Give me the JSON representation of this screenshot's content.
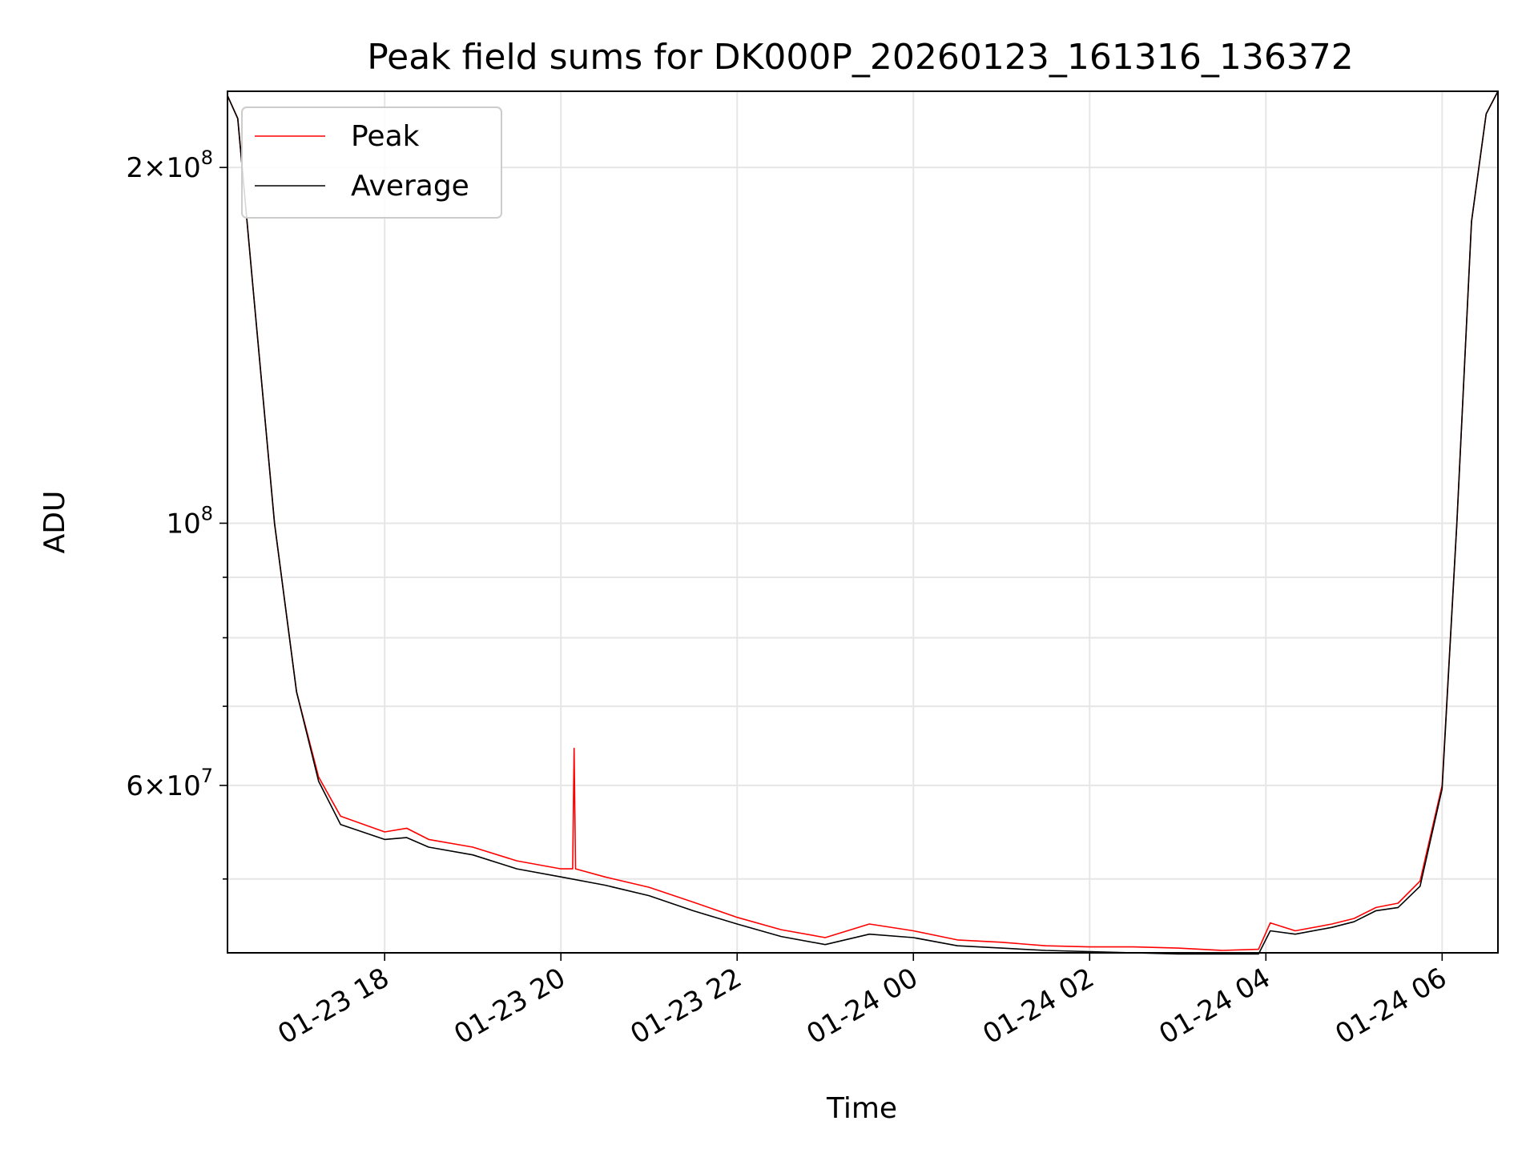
{
  "chart_data": {
    "type": "line",
    "title": "Peak field sums for DK000P_20260123_161316_136372",
    "xlabel": "Time",
    "ylabel": "ADU",
    "x_is_time": true,
    "xlim": [
      "2026-01-23 16:13",
      "2026-01-24 06:38"
    ],
    "ylim": [
      43300000,
      232000000
    ],
    "yscale": "log",
    "grid": true,
    "legend_position": "upper left",
    "x_ticks": [
      {
        "value": "2026-01-23 18:00",
        "label": "01-23 18"
      },
      {
        "value": "2026-01-23 20:00",
        "label": "01-23 20"
      },
      {
        "value": "2026-01-23 22:00",
        "label": "01-23 22"
      },
      {
        "value": "2026-01-24 00:00",
        "label": "01-24 00"
      },
      {
        "value": "2026-01-24 02:00",
        "label": "01-24 02"
      },
      {
        "value": "2026-01-24 04:00",
        "label": "01-24 04"
      },
      {
        "value": "2026-01-24 06:00",
        "label": "01-24 06"
      }
    ],
    "y_major_ticks": [
      {
        "value": 60000000,
        "mantissa": "6",
        "exponent": "7"
      },
      {
        "value": 100000000,
        "mantissa": "",
        "exponent": "8"
      },
      {
        "value": 200000000,
        "mantissa": "2",
        "exponent": "8"
      }
    ],
    "y_minor_ticks": [
      50000000,
      70000000,
      80000000,
      90000000,
      300000000
    ],
    "series": [
      {
        "name": "Peak",
        "color": "#ff0000",
        "x": [
          "2026-01-23 16:13",
          "2026-01-23 16:20",
          "2026-01-23 16:30",
          "2026-01-23 16:45",
          "2026-01-23 17:00",
          "2026-01-23 17:15",
          "2026-01-23 17:30",
          "2026-01-23 18:00",
          "2026-01-23 18:15",
          "2026-01-23 18:30",
          "2026-01-23 19:00",
          "2026-01-23 19:30",
          "2026-01-23 20:00",
          "2026-01-23 20:08",
          "2026-01-23 20:09",
          "2026-01-23 20:10",
          "2026-01-23 20:30",
          "2026-01-23 21:00",
          "2026-01-23 21:30",
          "2026-01-23 22:00",
          "2026-01-23 22:30",
          "2026-01-23 23:00",
          "2026-01-23 23:30",
          "2026-01-24 00:00",
          "2026-01-24 00:30",
          "2026-01-24 01:00",
          "2026-01-24 01:30",
          "2026-01-24 02:00",
          "2026-01-24 02:30",
          "2026-01-24 03:00",
          "2026-01-24 03:30",
          "2026-01-24 03:55",
          "2026-01-24 04:03",
          "2026-01-24 04:20",
          "2026-01-24 04:45",
          "2026-01-24 05:00",
          "2026-01-24 05:15",
          "2026-01-24 05:30",
          "2026-01-24 05:45",
          "2026-01-24 06:00",
          "2026-01-24 06:10",
          "2026-01-24 06:20",
          "2026-01-24 06:30",
          "2026-01-24 06:38"
        ],
        "y": [
          230000000,
          220000000,
          160000000,
          100000000,
          72000000,
          61000000,
          56500000,
          54800000,
          55200000,
          54000000,
          53200000,
          51800000,
          51000000,
          51000000,
          64500000,
          51000000,
          50200000,
          49200000,
          47800000,
          46400000,
          45300000,
          44600000,
          45800000,
          45200000,
          44400000,
          44200000,
          43900000,
          43800000,
          43800000,
          43700000,
          43500000,
          43600000,
          45900000,
          45200000,
          45800000,
          46300000,
          47300000,
          47700000,
          49800000,
          60000000,
          100000000,
          180000000,
          222000000,
          232000000
        ]
      },
      {
        "name": "Average",
        "color": "#000000",
        "x": [
          "2026-01-23 16:13",
          "2026-01-23 16:20",
          "2026-01-23 16:30",
          "2026-01-23 16:45",
          "2026-01-23 17:00",
          "2026-01-23 17:15",
          "2026-01-23 17:30",
          "2026-01-23 18:00",
          "2026-01-23 18:15",
          "2026-01-23 18:30",
          "2026-01-23 19:00",
          "2026-01-23 19:30",
          "2026-01-23 20:00",
          "2026-01-23 20:30",
          "2026-01-23 21:00",
          "2026-01-23 21:30",
          "2026-01-23 22:00",
          "2026-01-23 22:30",
          "2026-01-23 23:00",
          "2026-01-23 23:30",
          "2026-01-24 00:00",
          "2026-01-24 00:30",
          "2026-01-24 01:00",
          "2026-01-24 01:30",
          "2026-01-24 02:00",
          "2026-01-24 02:30",
          "2026-01-24 03:00",
          "2026-01-24 03:30",
          "2026-01-24 03:55",
          "2026-01-24 04:03",
          "2026-01-24 04:20",
          "2026-01-24 04:45",
          "2026-01-24 05:00",
          "2026-01-24 05:15",
          "2026-01-24 05:30",
          "2026-01-24 05:45",
          "2026-01-24 06:00",
          "2026-01-24 06:10",
          "2026-01-24 06:20",
          "2026-01-24 06:30",
          "2026-01-24 06:38"
        ],
        "y": [
          230000000,
          220000000,
          160000000,
          100000000,
          72000000,
          60500000,
          55600000,
          54000000,
          54200000,
          53200000,
          52400000,
          51000000,
          50200000,
          49400000,
          48400000,
          47000000,
          45800000,
          44700000,
          44000000,
          44900000,
          44600000,
          43900000,
          43700000,
          43500000,
          43400000,
          43300000,
          43200000,
          43200000,
          43200000,
          45200000,
          44900000,
          45500000,
          46000000,
          47000000,
          47300000,
          49300000,
          59600000,
          100000000,
          180000000,
          222000000,
          232000000
        ]
      }
    ]
  }
}
